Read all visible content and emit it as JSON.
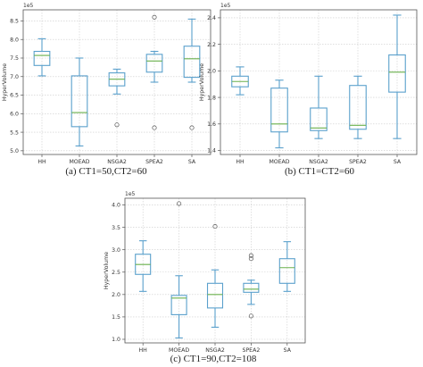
{
  "chart_data": [
    {
      "type": "box",
      "caption": "(a) CT1=50,CT2=60",
      "ylabel": "HyperVolume",
      "multiplier": "1e5",
      "ylim": [
        4.9,
        8.8
      ],
      "yticks": [
        "5.0",
        "5.5",
        "6.0",
        "6.5",
        "7.0",
        "7.5",
        "8.0",
        "8.5"
      ],
      "ytick_values": [
        5.0,
        5.5,
        6.0,
        6.5,
        7.0,
        7.5,
        8.0,
        8.5
      ],
      "categories": [
        "HH",
        "MOEAD",
        "NSGA2",
        "SPEA2",
        "SA"
      ],
      "boxes": [
        {
          "whislo": 7.02,
          "q1": 7.3,
          "med": 7.57,
          "q3": 7.68,
          "whishi": 8.02,
          "fliers": []
        },
        {
          "whislo": 5.13,
          "q1": 5.65,
          "med": 6.03,
          "q3": 7.02,
          "whishi": 7.5,
          "fliers": []
        },
        {
          "whislo": 6.53,
          "q1": 6.75,
          "med": 6.93,
          "q3": 7.1,
          "whishi": 7.2,
          "fliers": [
            5.7
          ]
        },
        {
          "whislo": 6.85,
          "q1": 7.12,
          "med": 7.42,
          "q3": 7.6,
          "whishi": 7.68,
          "fliers": [
            8.6,
            5.62
          ]
        },
        {
          "whislo": 6.85,
          "q1": 6.98,
          "med": 7.48,
          "q3": 7.82,
          "whishi": 8.55,
          "fliers": [
            5.62
          ]
        }
      ],
      "grid": true
    },
    {
      "type": "box",
      "caption": "(b) CT1=CT2=60",
      "ylabel": "HyperVolume",
      "multiplier": "1e5",
      "ylim": [
        1.37,
        2.46
      ],
      "yticks": [
        "1.4",
        "1.6",
        "1.8",
        "2.0",
        "2.2",
        "2.4"
      ],
      "ytick_values": [
        1.4,
        1.6,
        1.8,
        2.0,
        2.2,
        2.4
      ],
      "categories": [
        "HH",
        "MOEAD",
        "NSGA2",
        "SPEA2",
        "SA"
      ],
      "boxes": [
        {
          "whislo": 1.82,
          "q1": 1.88,
          "med": 1.92,
          "q3": 1.96,
          "whishi": 2.03,
          "fliers": []
        },
        {
          "whislo": 1.42,
          "q1": 1.54,
          "med": 1.6,
          "q3": 1.87,
          "whishi": 1.93,
          "fliers": []
        },
        {
          "whislo": 1.49,
          "q1": 1.55,
          "med": 1.57,
          "q3": 1.72,
          "whishi": 1.96,
          "fliers": []
        },
        {
          "whislo": 1.49,
          "q1": 1.56,
          "med": 1.59,
          "q3": 1.89,
          "whishi": 1.96,
          "fliers": []
        },
        {
          "whislo": 1.49,
          "q1": 1.84,
          "med": 1.99,
          "q3": 2.12,
          "whishi": 2.42,
          "fliers": []
        }
      ],
      "grid": true
    },
    {
      "type": "box",
      "caption": "(c) CT1=90,CT2=108",
      "ylabel": "HyperVolume",
      "multiplier": "1e5",
      "ylim": [
        0.92,
        4.15
      ],
      "yticks": [
        "1.0",
        "1.5",
        "2.0",
        "2.5",
        "3.0",
        "3.5",
        "4.0"
      ],
      "ytick_values": [
        1.0,
        1.5,
        2.0,
        2.5,
        3.0,
        3.5,
        4.0
      ],
      "categories": [
        "HH",
        "MOEAD",
        "NSGA2",
        "SPEA2",
        "SA"
      ],
      "boxes": [
        {
          "whislo": 2.07,
          "q1": 2.45,
          "med": 2.67,
          "q3": 2.9,
          "whishi": 3.2,
          "fliers": []
        },
        {
          "whislo": 1.03,
          "q1": 1.55,
          "med": 1.92,
          "q3": 1.98,
          "whishi": 2.42,
          "fliers": [
            4.03
          ]
        },
        {
          "whislo": 1.27,
          "q1": 1.7,
          "med": 2.0,
          "q3": 2.25,
          "whishi": 2.55,
          "fliers": [
            3.52
          ]
        },
        {
          "whislo": 1.78,
          "q1": 2.05,
          "med": 2.12,
          "q3": 2.25,
          "whishi": 2.32,
          "fliers": [
            2.87,
            2.8,
            1.52
          ]
        },
        {
          "whislo": 2.07,
          "q1": 2.25,
          "med": 2.6,
          "q3": 2.8,
          "whishi": 3.18,
          "fliers": []
        }
      ],
      "grid": true
    }
  ],
  "colors": {
    "box": "#5aa0cc",
    "median": "#6ab04c",
    "frame": "#555555",
    "grid": "#cccccc",
    "flier": "#555555"
  }
}
